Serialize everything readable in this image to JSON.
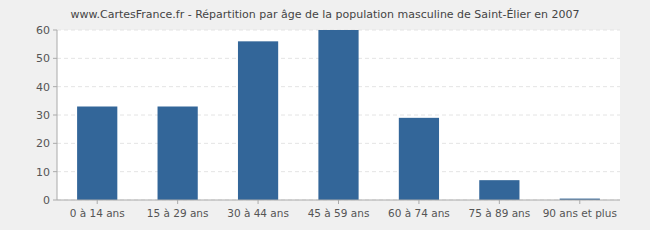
{
  "chart_data": {
    "type": "bar",
    "title": "www.CartesFrance.fr - Répartition par âge de la population masculine de Saint-Élier en 2007",
    "categories": [
      "0 à 14 ans",
      "15 à 29 ans",
      "30 à 44 ans",
      "45 à 59 ans",
      "60 à 74 ans",
      "75 à 89 ans",
      "90 ans et plus"
    ],
    "values": [
      33,
      33,
      56,
      60,
      29,
      7,
      0.5
    ],
    "color": "#336699",
    "ylim": [
      0,
      60
    ],
    "yticks": [
      0,
      10,
      20,
      30,
      40,
      50,
      60
    ],
    "grid": true
  }
}
